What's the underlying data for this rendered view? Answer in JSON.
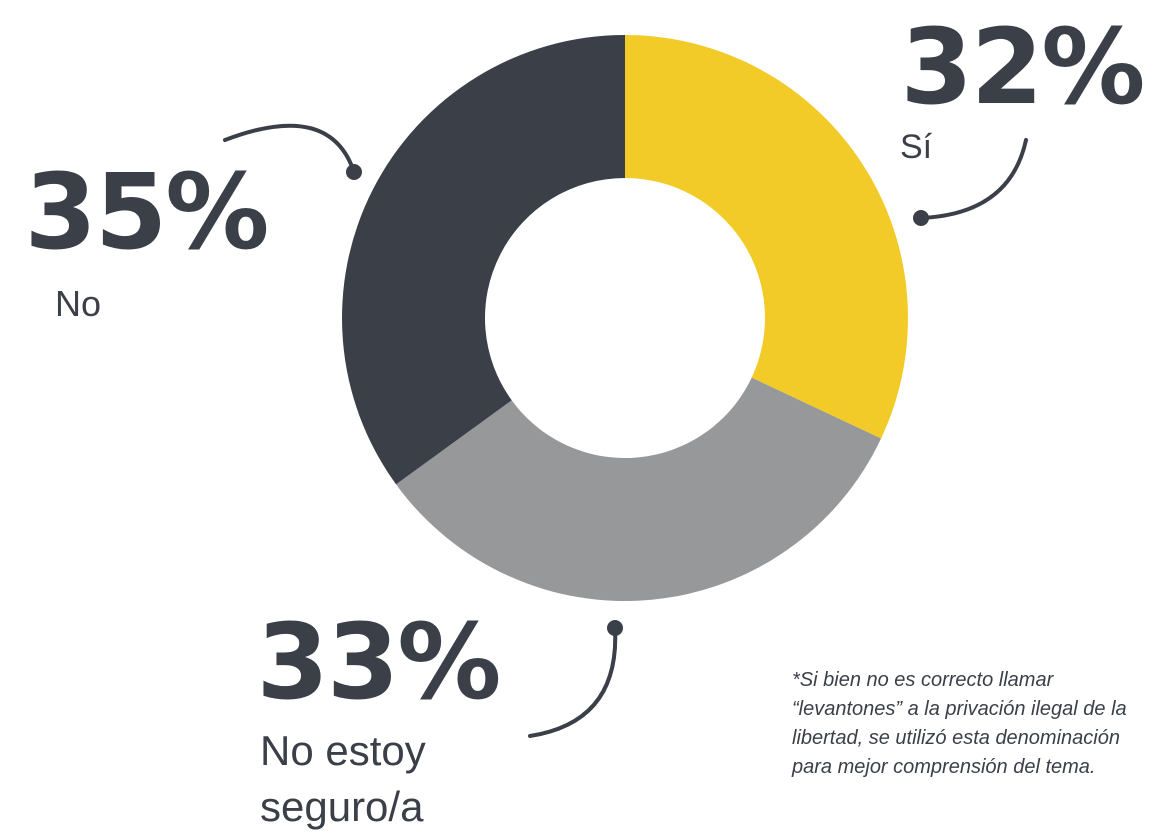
{
  "chart_data": {
    "type": "donut",
    "categories": [
      "Sí",
      "No estoy seguro/a",
      "No"
    ],
    "values": [
      32,
      33,
      35
    ],
    "value_labels": [
      "32%",
      "33%",
      "35%"
    ],
    "colors": [
      "#f2cb28",
      "#97989a",
      "#3a3f48"
    ],
    "note": [
      "*Si bien no es correcto llamar",
      "“levantones” a la privación ilegal de la",
      "libertad, se utilizó esta denominación",
      "para mejor comprensión del tema."
    ]
  }
}
